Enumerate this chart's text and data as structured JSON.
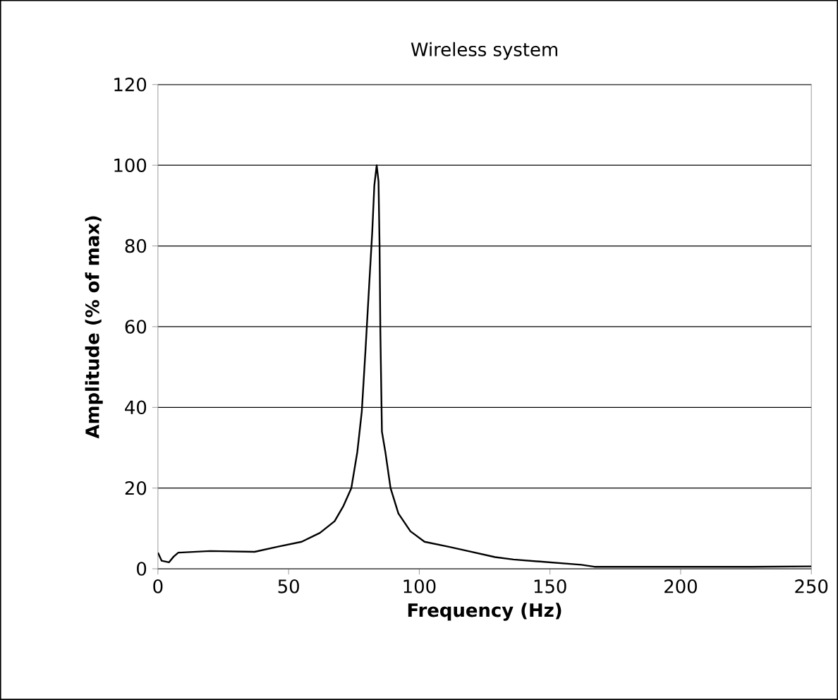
{
  "chart_data": {
    "type": "line",
    "title": "Wireless system",
    "xlabel": "Frequency (Hz)",
    "ylabel": "Amplitude (% of max)",
    "x": [
      0,
      1.4,
      4.2,
      6,
      7.8,
      20,
      37,
      46,
      55,
      62,
      67.6,
      71,
      74,
      76.3,
      78,
      79.4,
      80.8,
      82,
      82.8,
      83.7,
      84.4,
      84.8,
      85.1,
      85.7,
      87,
      89,
      92,
      96.6,
      102,
      111,
      118,
      129,
      136,
      162,
      167,
      191,
      227,
      250
    ],
    "series": [
      {
        "color": "#000000",
        "values": [
          4,
          2,
          1.6,
          3,
          4,
          4.4,
          4.2,
          5.5,
          6.7,
          8.9,
          11.8,
          15.6,
          20,
          29,
          39,
          54,
          70,
          83.5,
          95,
          100,
          96,
          80,
          59,
          34,
          29,
          20,
          13.7,
          9.3,
          6.7,
          5.5,
          4.5,
          2.9,
          2.3,
          1,
          0.5,
          0.5,
          0.5,
          0.6
        ]
      }
    ],
    "xlim": [
      0,
      250
    ],
    "xticks": [
      0,
      50,
      100,
      150,
      200,
      250
    ],
    "ylim": [
      0,
      120
    ],
    "yticks": [
      0,
      20,
      40,
      60,
      80,
      100,
      120
    ],
    "grid": "y",
    "marker": "none",
    "line_style": "solid"
  }
}
